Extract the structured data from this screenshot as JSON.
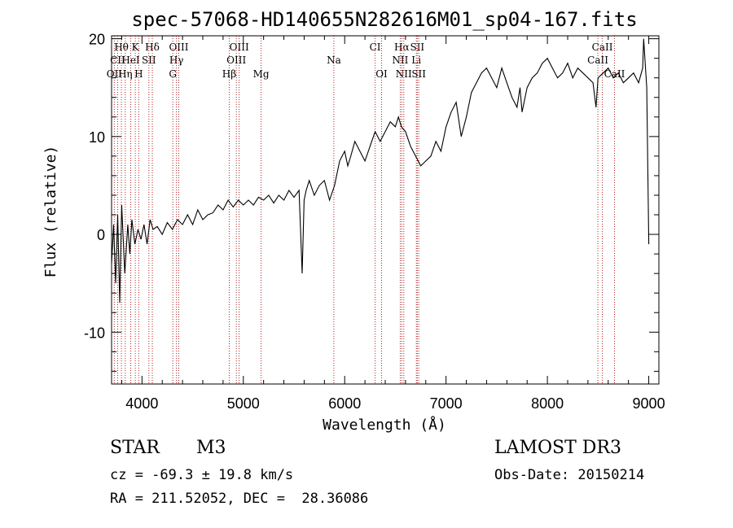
{
  "chart_data": {
    "type": "line",
    "title": "spec-57068-HD140655N282616M01_sp04-167.fits",
    "xlabel": "Wavelength (Å)",
    "ylabel": "Flux (relative)",
    "xlim": [
      3700,
      9100
    ],
    "ylim": [
      -15.3,
      20.3
    ],
    "xticks": [
      4000,
      5000,
      6000,
      7000,
      8000,
      9000
    ],
    "yticks": [
      -10,
      0,
      10,
      20
    ],
    "grid": false,
    "series": [
      {
        "x": [
          3700,
          3720,
          3740,
          3760,
          3780,
          3800,
          3830,
          3860,
          3880,
          3900,
          3930,
          3960,
          3990,
          4020,
          4050,
          4080,
          4110,
          4150,
          4200,
          4250,
          4300,
          4350,
          4400,
          4450,
          4500,
          4550,
          4600,
          4650,
          4700,
          4750,
          4800,
          4850,
          4900,
          4950,
          5000,
          5050,
          5100,
          5150,
          5200,
          5250,
          5300,
          5350,
          5400,
          5450,
          5500,
          5550,
          5580,
          5600,
          5620,
          5650,
          5700,
          5750,
          5800,
          5850,
          5900,
          5950,
          6000,
          6030,
          6060,
          6100,
          6150,
          6200,
          6250,
          6300,
          6350,
          6400,
          6450,
          6500,
          6530,
          6560,
          6600,
          6650,
          6700,
          6750,
          6800,
          6850,
          6900,
          6950,
          7000,
          7050,
          7100,
          7150,
          7200,
          7250,
          7300,
          7350,
          7400,
          7450,
          7500,
          7550,
          7600,
          7650,
          7700,
          7730,
          7750,
          7800,
          7850,
          7900,
          7950,
          8000,
          8050,
          8100,
          8150,
          8200,
          8250,
          8300,
          8350,
          8400,
          8450,
          8480,
          8500,
          8550,
          8600,
          8650,
          8700,
          8750,
          8800,
          8850,
          8900,
          8940,
          8950,
          8980,
          9000
        ],
        "y": [
          -3,
          1,
          -5,
          2,
          -7,
          3,
          -4,
          1,
          -2,
          1.5,
          -1,
          0.5,
          -0.5,
          1,
          -1,
          1.5,
          0.5,
          0.8,
          0,
          1.2,
          0.5,
          1.5,
          1,
          2,
          1,
          2.5,
          1.5,
          2,
          2.2,
          3,
          2.5,
          3.5,
          2.8,
          3.5,
          3,
          3.5,
          3,
          3.8,
          3.5,
          4,
          3.2,
          4,
          3.5,
          4.5,
          3.8,
          4.5,
          -4,
          3.5,
          4.5,
          5.5,
          4,
          5,
          5.5,
          3.5,
          5,
          7.5,
          8.5,
          7,
          8,
          9.5,
          8.5,
          7.5,
          9,
          10.5,
          9.5,
          10.5,
          11.5,
          11,
          12,
          11,
          10.5,
          9,
          8,
          7,
          7.5,
          8,
          9.5,
          8.5,
          11,
          12.5,
          13.5,
          10,
          12,
          14.5,
          15.5,
          16.5,
          17,
          16,
          15,
          17,
          15.5,
          14,
          13,
          15,
          12.5,
          15,
          16,
          16.5,
          17.5,
          18,
          17,
          16,
          16.5,
          17.5,
          16,
          17,
          16.5,
          16,
          15.5,
          13,
          16,
          16.5,
          17,
          16,
          16.5,
          15.5,
          16,
          16.5,
          15.5,
          17,
          20,
          15,
          -1
        ]
      }
    ],
    "line_markers": [
      {
        "label": "Hθ",
        "x": 3797,
        "row": 0
      },
      {
        "label": "K",
        "x": 3934,
        "row": 0
      },
      {
        "label": "Hδ",
        "x": 4102,
        "row": 0
      },
      {
        "label": "OIII",
        "x": 4363,
        "row": 0
      },
      {
        "label": "OIII",
        "x": 4959,
        "row": 0
      },
      {
        "label": "CI",
        "x": 6300,
        "row": 0
      },
      {
        "label": "Hα",
        "x": 6563,
        "row": 0
      },
      {
        "label": "SII",
        "x": 6716,
        "row": 0
      },
      {
        "label": "CaII",
        "x": 8542,
        "row": 0
      },
      {
        "label": "CII",
        "x": 3760,
        "row": 1
      },
      {
        "label": "HeI",
        "x": 3889,
        "row": 1
      },
      {
        "label": "SII",
        "x": 4068,
        "row": 1
      },
      {
        "label": "Hγ",
        "x": 4340,
        "row": 1
      },
      {
        "label": "OIII",
        "x": 4931,
        "row": 1
      },
      {
        "label": "Na",
        "x": 5893,
        "row": 1
      },
      {
        "label": "NII",
        "x": 6548,
        "row": 1
      },
      {
        "label": "Li",
        "x": 6707,
        "row": 1
      },
      {
        "label": "CaII",
        "x": 8498,
        "row": 1
      },
      {
        "label": "OII",
        "x": 3727,
        "row": 2
      },
      {
        "label": "Hη",
        "x": 3835,
        "row": 2
      },
      {
        "label": "H",
        "x": 3968,
        "row": 2
      },
      {
        "label": "G",
        "x": 4304,
        "row": 2
      },
      {
        "label": "Hβ",
        "x": 4861,
        "row": 2
      },
      {
        "label": "Mg",
        "x": 5175,
        "row": 2
      },
      {
        "label": "OI",
        "x": 6364,
        "row": 2
      },
      {
        "label": "NII",
        "x": 6583,
        "row": 2
      },
      {
        "label": "SII",
        "x": 6731,
        "row": 2
      },
      {
        "label": "CaII",
        "x": 8662,
        "row": 2
      }
    ]
  },
  "info": {
    "type_label": "STAR",
    "subclass": "M3",
    "survey": "LAMOST DR3",
    "cz": "cz = -69.3 ± 19.8 km/s",
    "obs_date": "Obs-Date: 20150214",
    "coords": "RA = 211.52052, DEC =  28.36086"
  }
}
